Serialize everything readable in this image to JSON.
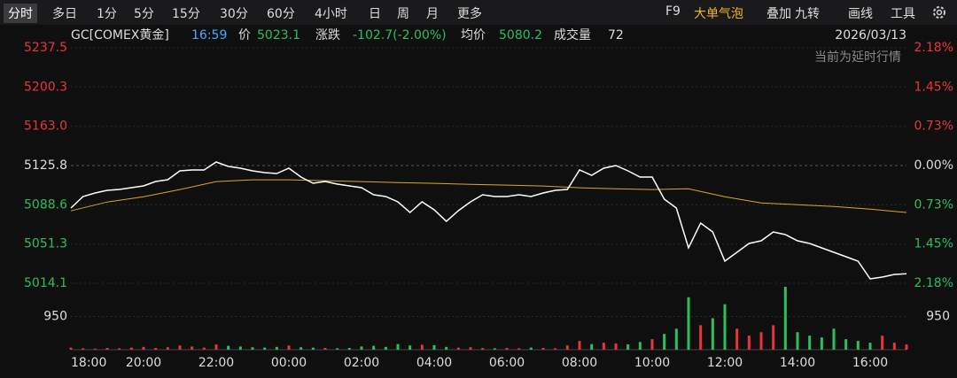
{
  "toolbar": {
    "tabs": [
      "分时",
      "多日",
      "1分",
      "5分",
      "15分",
      "30分",
      "60分",
      "4小时",
      "日",
      "周",
      "月",
      "更多"
    ],
    "tools": [
      "F9",
      "大单气泡",
      "叠加",
      "九转",
      "画线",
      "工具"
    ]
  },
  "info": {
    "symbol": "GC[COMEX黄金]",
    "time": "16:59",
    "price_label": "价",
    "price": "5023.1",
    "change_label": "涨跌",
    "change": "-102.7(-2.00%)",
    "avg_label": "均价",
    "avg": "5080.2",
    "volume_label": "成交量",
    "volume": "72",
    "date": "2026/03/13",
    "notice": "当前为延时行情"
  },
  "chart_data": {
    "type": "line",
    "x": [
      "18:00",
      "18:20",
      "18:40",
      "19:00",
      "19:20",
      "19:40",
      "20:00",
      "20:20",
      "20:40",
      "21:00",
      "21:20",
      "21:40",
      "22:00",
      "22:20",
      "22:40",
      "23:00",
      "23:20",
      "23:40",
      "00:00",
      "00:20",
      "00:40",
      "01:00",
      "01:20",
      "01:40",
      "02:00",
      "02:20",
      "02:40",
      "03:00",
      "03:20",
      "03:40",
      "04:00",
      "04:20",
      "04:40",
      "05:00",
      "05:20",
      "05:40",
      "06:00",
      "06:20",
      "06:40",
      "07:00",
      "07:20",
      "07:40",
      "08:00",
      "08:20",
      "08:40",
      "09:00",
      "09:20",
      "09:40",
      "10:00",
      "10:20",
      "10:40",
      "11:00",
      "11:20",
      "11:40",
      "12:00",
      "12:20",
      "12:40",
      "13:00",
      "13:20",
      "13:40",
      "14:00",
      "14:20",
      "14:40",
      "15:00",
      "15:20",
      "15:40",
      "16:00",
      "16:20",
      "16:40",
      "17:00"
    ],
    "series": [
      {
        "color": "#ffffff",
        "values": [
          5085.5,
          5096.4,
          5099.8,
          5102.3,
          5103.1,
          5104.8,
          5106.5,
          5110.7,
          5112.4,
          5120.8,
          5121.6,
          5121.6,
          5129.2,
          5125.0,
          5123.3,
          5120.8,
          5119.1,
          5118.2,
          5123.3,
          5114.9,
          5109.0,
          5110.7,
          5108.2,
          5106.5,
          5104.8,
          5098.1,
          5096.4,
          5091.4,
          5081.3,
          5091.4,
          5083.8,
          5072.9,
          5083.0,
          5091.4,
          5098.1,
          5096.4,
          5096.4,
          5098.1,
          5096.4,
          5099.8,
          5102.3,
          5103.1,
          5121.6,
          5116.6,
          5123.3,
          5125.8,
          5120.8,
          5114.9,
          5114.9,
          5093.9,
          5085.5,
          5047.7,
          5071.2,
          5062.8,
          5035.1,
          5043.5,
          5051.9,
          5054.4,
          5062.8,
          5060.3,
          5054.4,
          5051.9,
          5047.7,
          5043.5,
          5039.3,
          5035.1,
          5018.3,
          5020.0,
          5022.5,
          5023.1
        ]
      },
      {
        "color": "#d9a531",
        "x": [
          "18:00",
          "19:00",
          "20:00",
          "21:00",
          "22:00",
          "23:00",
          "00:00",
          "01:00",
          "02:00",
          "03:00",
          "04:00",
          "05:00",
          "06:00",
          "07:00",
          "08:00",
          "09:00",
          "10:00",
          "11:00",
          "12:00",
          "13:00",
          "14:00",
          "15:00",
          "16:00",
          "17:00"
        ],
        "values": [
          5082.8,
          5091.2,
          5096.2,
          5103.0,
          5110.6,
          5112.3,
          5112.3,
          5111.4,
          5110.6,
          5109.7,
          5108.9,
          5108.0,
          5107.2,
          5106.4,
          5104.7,
          5103.8,
          5103.0,
          5103.8,
          5096.2,
          5090.4,
          5088.7,
          5087.0,
          5084.5,
          5081.3
        ]
      }
    ],
    "volume": {
      "up_color": "#e8353a",
      "down_color": "#2bbf5e",
      "values": [
        60,
        40,
        30,
        50,
        40,
        60,
        80,
        50,
        70,
        120,
        90,
        60,
        150,
        110,
        90,
        70,
        60,
        80,
        120,
        70,
        60,
        50,
        40,
        50,
        90,
        110,
        80,
        160,
        120,
        140,
        130,
        80,
        60,
        70,
        50,
        40,
        50,
        40,
        60,
        50,
        40,
        120,
        250,
        160,
        200,
        180,
        150,
        220,
        300,
        450,
        600,
        1500,
        700,
        900,
        1300,
        600,
        400,
        500,
        700,
        1800,
        500,
        400,
        350,
        600,
        300,
        250,
        200,
        400,
        200,
        150
      ]
    },
    "xlim": [
      "18:00",
      "17:00"
    ],
    "xticks": [
      "18:00",
      "20:00",
      "22:00",
      "00:00",
      "02:00",
      "04:00",
      "06:00",
      "08:00",
      "10:00",
      "12:00",
      "14:00",
      "16:00"
    ],
    "ylim": [
      5014.1,
      5237.5
    ],
    "yticks": [
      5237.5,
      5200.3,
      {
        "value": 5163,
        "label": "5163.0"
      },
      5125.8,
      5088.6,
      5051.3,
      5014.1
    ],
    "y2lim": [
      -2.18,
      2.18
    ],
    "y2ticks": [
      {
        "value": 2.18,
        "label": "2.18%"
      },
      {
        "value": 1.45,
        "label": "1.45%"
      },
      {
        "value": 0.73,
        "label": "0.73%"
      },
      {
        "value": 0,
        "label": "0.00%"
      },
      {
        "value": -0.73,
        "label": "0.73%"
      },
      {
        "value": -1.45,
        "label": "1.45%"
      },
      {
        "value": -2.18,
        "label": "2.18%"
      }
    ],
    "vlim": [
      0,
      1900
    ],
    "vticks": [
      950
    ],
    "grid": true
  }
}
